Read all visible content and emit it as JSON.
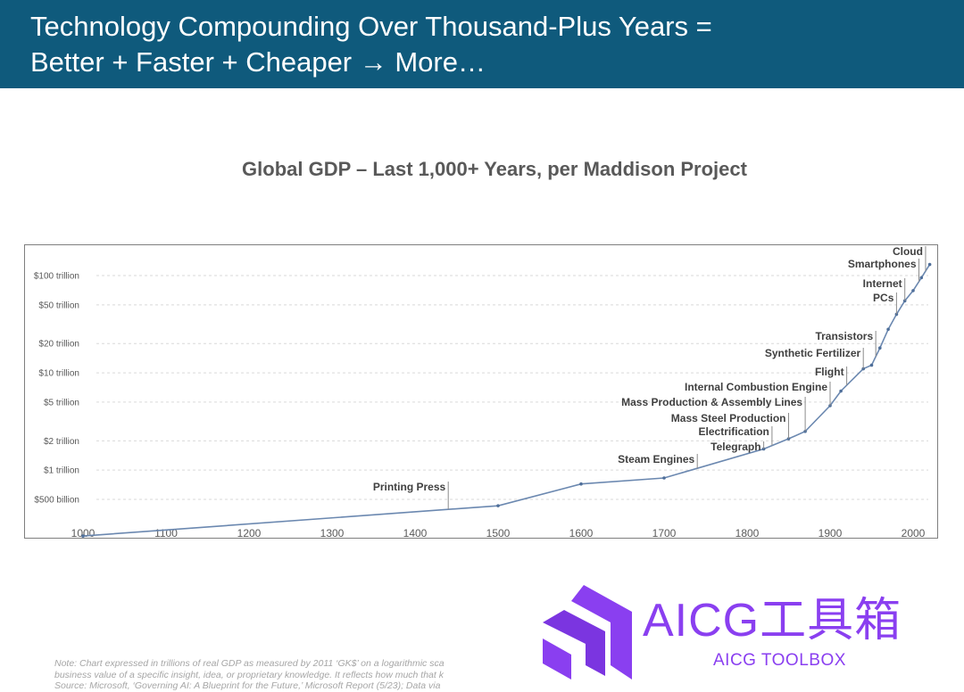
{
  "header": {
    "line1": "Technology Compounding Over Thousand-Plus Years =",
    "line2": "Better + Faster + Cheaper → More…",
    "background": "#0f5a7c"
  },
  "chart_data": {
    "type": "line",
    "title": "Global GDP – Last 1,000+ Years, per Maddison Project",
    "xlabel": "",
    "ylabel": "",
    "y_scale": "log",
    "x_ticks": [
      1000,
      1100,
      1200,
      1300,
      1400,
      1500,
      1600,
      1700,
      1800,
      1900,
      2000
    ],
    "y_ticks": [
      {
        "value": 0.5,
        "label": "$500 billion"
      },
      {
        "value": 1,
        "label": "$1 trillion"
      },
      {
        "value": 2,
        "label": "$2 trillion"
      },
      {
        "value": 5,
        "label": "$5 trillion"
      },
      {
        "value": 10,
        "label": "$10 trillion"
      },
      {
        "value": 20,
        "label": "$20 trillion"
      },
      {
        "value": 50,
        "label": "$50 trillion"
      },
      {
        "value": 100,
        "label": "$100 trillion"
      }
    ],
    "grid": "horizontal dashed",
    "line_color": "#6b88b0",
    "series": [
      {
        "x": [
          1000,
          1500,
          1600,
          1700,
          1820,
          1850,
          1870,
          1900,
          1913,
          1940,
          1950,
          1960,
          1970,
          1980,
          1990,
          2000,
          2010,
          2020
        ],
        "y": [
          0.21,
          0.43,
          0.72,
          0.83,
          1.65,
          2.1,
          2.5,
          4.6,
          6.5,
          11,
          12,
          18,
          28,
          40,
          55,
          70,
          95,
          130
        ]
      }
    ],
    "annotations": [
      {
        "label": "Printing Press",
        "year": 1440
      },
      {
        "label": "Steam Engines",
        "year": 1740
      },
      {
        "label": "Telegraph",
        "year": 1820
      },
      {
        "label": "Electrification",
        "year": 1830
      },
      {
        "label": "Mass Steel Production",
        "year": 1850
      },
      {
        "label": "Mass Production & Assembly Lines",
        "year": 1870
      },
      {
        "label": "Internal Combustion Engine",
        "year": 1900
      },
      {
        "label": "Flight",
        "year": 1920
      },
      {
        "label": "Synthetic Fertilizer",
        "year": 1940
      },
      {
        "label": "Transistors",
        "year": 1955
      },
      {
        "label": "PCs",
        "year": 1980
      },
      {
        "label": "Internet",
        "year": 1990
      },
      {
        "label": "Smartphones",
        "year": 2007
      },
      {
        "label": "Cloud",
        "year": 2015
      }
    ]
  },
  "note": {
    "line1": "Note: Chart expressed in trillions of real GDP as measured by 2011 ‘GK$’ on a logarithmic sca",
    "line2": "business value of a specific insight, idea, or proprietary knowledge. It reflects how much that k",
    "line3": "Source: Microsoft, ‘Governing AI: A Blueprint for the Future,’ Microsoft Report (5/23); Data via"
  },
  "logo": {
    "title": "AICG工具箱",
    "subtitle": "AICG TOOLBOX",
    "color": "#8a3ff0"
  }
}
